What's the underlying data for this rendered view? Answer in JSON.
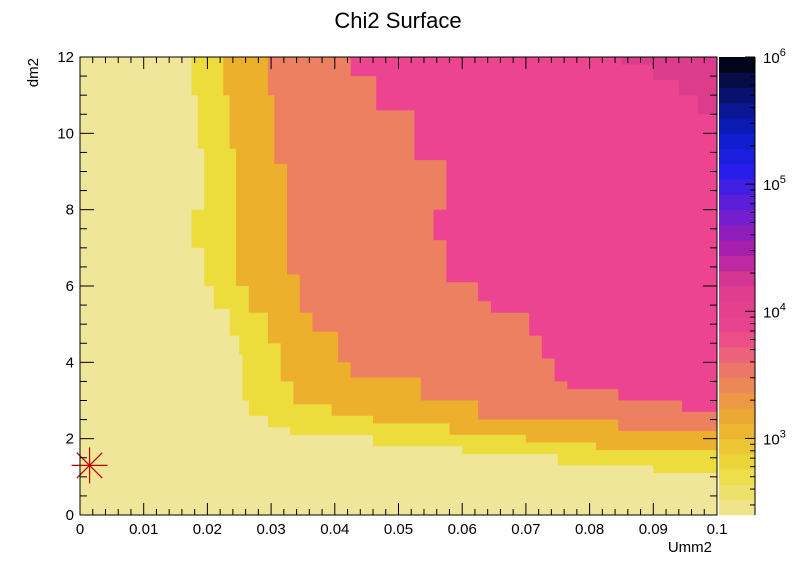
{
  "chart_data": {
    "type": "heatmap",
    "title": "Chi2 Surface",
    "xlabel": "Umm2",
    "ylabel": "dm2",
    "xlim": [
      0,
      0.1
    ],
    "ylim": [
      0,
      12
    ],
    "x_ticks": [
      "0",
      "0.01",
      "0.02",
      "0.03",
      "0.04",
      "0.05",
      "0.06",
      "0.07",
      "0.08",
      "0.09",
      "0.1"
    ],
    "y_ticks": [
      "0",
      "2",
      "4",
      "6",
      "8",
      "10",
      "12"
    ],
    "z_scale": "log",
    "zlim": [
      250,
      1000000
    ],
    "z_ticks": [
      {
        "value": 1000,
        "base": "10",
        "exp": "3"
      },
      {
        "value": 10000,
        "base": "10",
        "exp": "4"
      },
      {
        "value": 100000,
        "base": "10",
        "exp": "5"
      },
      {
        "value": 1000000,
        "base": "10",
        "exp": "6"
      }
    ],
    "contour_levels": [
      250,
      400,
      600,
      900,
      1300,
      2000
    ],
    "level_colors": [
      "#f0e69a",
      "#ecdc3c",
      "#ecb02c",
      "#ec8060",
      "#ec4490",
      "#dc3c8c"
    ],
    "boundaries": [
      {
        "level": 400,
        "points": [
          [
            0.0175,
            12
          ],
          [
            0.0175,
            11.0
          ],
          [
            0.0185,
            11.0
          ],
          [
            0.0185,
            9.6
          ],
          [
            0.0195,
            9.6
          ],
          [
            0.0195,
            8.0
          ],
          [
            0.0175,
            8.0
          ],
          [
            0.0175,
            7.0
          ],
          [
            0.0195,
            7.0
          ],
          [
            0.0195,
            6.0
          ],
          [
            0.021,
            6.0
          ],
          [
            0.021,
            5.4
          ],
          [
            0.0235,
            5.4
          ],
          [
            0.0235,
            4.7
          ],
          [
            0.025,
            4.7
          ],
          [
            0.025,
            4.2
          ],
          [
            0.0255,
            4.2
          ],
          [
            0.0255,
            3.0
          ],
          [
            0.0265,
            3.0
          ],
          [
            0.0265,
            2.6
          ],
          [
            0.0295,
            2.6
          ],
          [
            0.0295,
            2.3
          ],
          [
            0.033,
            2.3
          ],
          [
            0.033,
            2.1
          ],
          [
            0.046,
            2.1
          ],
          [
            0.046,
            1.8
          ],
          [
            0.06,
            1.8
          ],
          [
            0.06,
            1.6
          ],
          [
            0.075,
            1.6
          ],
          [
            0.075,
            1.3
          ],
          [
            0.09,
            1.3
          ],
          [
            0.09,
            1.1
          ],
          [
            0.1,
            1.1
          ]
        ]
      },
      {
        "level": 600,
        "points": [
          [
            0.0225,
            12
          ],
          [
            0.0225,
            11.0
          ],
          [
            0.0235,
            11.0
          ],
          [
            0.0235,
            9.6
          ],
          [
            0.0245,
            9.6
          ],
          [
            0.0245,
            6.0
          ],
          [
            0.0265,
            6.0
          ],
          [
            0.0265,
            5.3
          ],
          [
            0.0295,
            5.3
          ],
          [
            0.0295,
            4.5
          ],
          [
            0.0315,
            4.5
          ],
          [
            0.0315,
            3.5
          ],
          [
            0.0335,
            3.5
          ],
          [
            0.0335,
            2.9
          ],
          [
            0.0395,
            2.9
          ],
          [
            0.0395,
            2.6
          ],
          [
            0.046,
            2.6
          ],
          [
            0.046,
            2.4
          ],
          [
            0.058,
            2.4
          ],
          [
            0.058,
            2.1
          ],
          [
            0.07,
            2.1
          ],
          [
            0.07,
            1.9
          ],
          [
            0.081,
            1.9
          ],
          [
            0.081,
            1.7
          ],
          [
            0.1,
            1.7
          ]
        ]
      },
      {
        "level": 900,
        "points": [
          [
            0.0295,
            12
          ],
          [
            0.0295,
            11.0
          ],
          [
            0.0305,
            11.0
          ],
          [
            0.0305,
            9.2
          ],
          [
            0.0325,
            9.2
          ],
          [
            0.0325,
            6.3
          ],
          [
            0.0345,
            6.3
          ],
          [
            0.0345,
            5.3
          ],
          [
            0.0365,
            5.3
          ],
          [
            0.0365,
            4.8
          ],
          [
            0.0405,
            4.8
          ],
          [
            0.0405,
            4.0
          ],
          [
            0.0425,
            4.0
          ],
          [
            0.0425,
            3.6
          ],
          [
            0.0535,
            3.6
          ],
          [
            0.0535,
            3.0
          ],
          [
            0.0625,
            3.0
          ],
          [
            0.0625,
            2.5
          ],
          [
            0.0845,
            2.5
          ],
          [
            0.0845,
            2.2
          ],
          [
            0.1,
            2.2
          ]
        ]
      },
      {
        "level": 1300,
        "points": [
          [
            0.0425,
            12
          ],
          [
            0.0425,
            11.5
          ],
          [
            0.0465,
            11.5
          ],
          [
            0.0465,
            10.6
          ],
          [
            0.0525,
            10.6
          ],
          [
            0.0525,
            9.3
          ],
          [
            0.0575,
            9.3
          ],
          [
            0.0575,
            8.0
          ],
          [
            0.0555,
            8.0
          ],
          [
            0.0555,
            7.2
          ],
          [
            0.0575,
            7.2
          ],
          [
            0.0575,
            6.1
          ],
          [
            0.0625,
            6.1
          ],
          [
            0.0625,
            5.6
          ],
          [
            0.0645,
            5.6
          ],
          [
            0.0645,
            5.3
          ],
          [
            0.0705,
            5.3
          ],
          [
            0.0705,
            4.7
          ],
          [
            0.0725,
            4.7
          ],
          [
            0.0725,
            4.1
          ],
          [
            0.0745,
            4.1
          ],
          [
            0.0745,
            3.5
          ],
          [
            0.0765,
            3.5
          ],
          [
            0.0765,
            3.3
          ],
          [
            0.0845,
            3.3
          ],
          [
            0.0845,
            3.0
          ],
          [
            0.0945,
            3.0
          ],
          [
            0.0945,
            2.7
          ],
          [
            0.1,
            2.7
          ]
        ]
      },
      {
        "level": 2000,
        "points": [
          [
            0.085,
            12
          ],
          [
            0.085,
            11.8
          ],
          [
            0.09,
            11.8
          ],
          [
            0.09,
            11.4
          ],
          [
            0.094,
            11.4
          ],
          [
            0.094,
            11.0
          ],
          [
            0.097,
            11.0
          ],
          [
            0.097,
            10.5
          ],
          [
            0.1,
            10.5
          ]
        ]
      }
    ],
    "best_fit_marker": {
      "x": 0.0015,
      "y": 1.3
    }
  }
}
